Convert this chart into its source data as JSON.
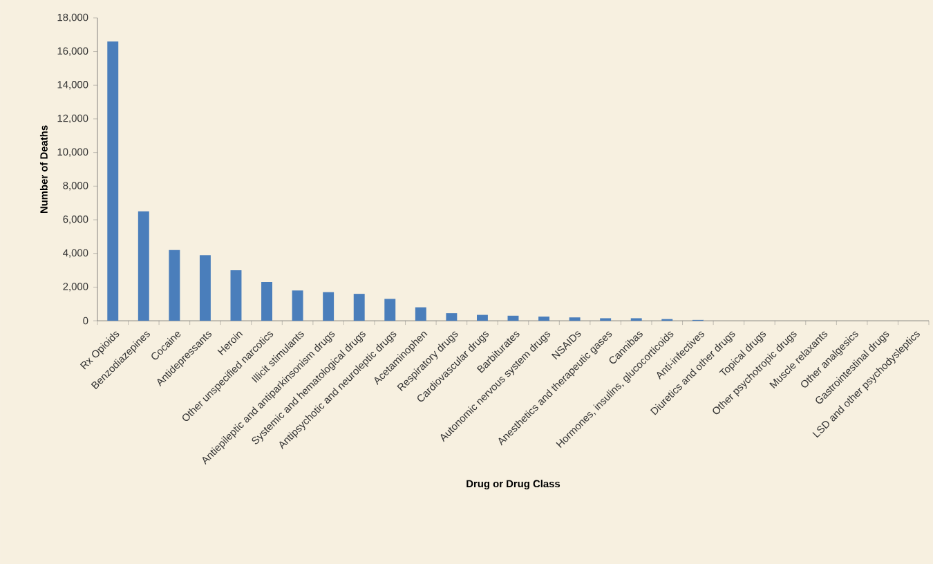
{
  "chart_data": {
    "type": "bar",
    "xlabel": "Drug or Drug Class",
    "ylabel": "Number of Deaths",
    "categories": [
      "Rx Opioids",
      "Benzodiazepines",
      "Cocaine",
      "Antidepressants",
      "Heroin",
      "Other unspecified narcotics",
      "Illicit stimulants",
      "Antiepileptic and antiparkinsonism drugs",
      "Systemic and hematological drugs",
      "Antipsychotic and neuroleptic drugs",
      "Acetaminophen",
      "Respiratory drugs",
      "Cardiovascular drugs",
      "Barbiturates",
      "Autonomic nervous system drugs",
      "NSAIDs",
      "Anesthetics and therapeutic gases",
      "Cannibas",
      "Hormones, insulins, glucocorticoids",
      "Anti-infectives",
      "Diuretics and other drugs",
      "Topical drugs",
      "Other psychotropic drugs",
      "Muscle relaxants",
      "Other analgesics",
      "Gastrointestinal drugs",
      "LSD and other psychodysleptics"
    ],
    "values": [
      16600,
      6500,
      4200,
      3900,
      3000,
      2300,
      1800,
      1700,
      1600,
      1300,
      800,
      450,
      350,
      300,
      250,
      200,
      150,
      150,
      100,
      50,
      0,
      0,
      0,
      0,
      0,
      0,
      0
    ],
    "color": "#4a7ebb",
    "ylim": [
      0,
      18000
    ],
    "yticks": [
      {
        "value": 0,
        "label": "0"
      },
      {
        "value": 2000,
        "label": "2,000"
      },
      {
        "value": 4000,
        "label": "4,000"
      },
      {
        "value": 6000,
        "label": "6,000"
      },
      {
        "value": 8000,
        "label": "8,000"
      },
      {
        "value": 10000,
        "label": "10,000"
      },
      {
        "value": 12000,
        "label": "12,000"
      },
      {
        "value": 14000,
        "label": "14,000"
      },
      {
        "value": 16000,
        "label": "16,000"
      },
      {
        "value": 18000,
        "label": "18,000"
      }
    ]
  }
}
